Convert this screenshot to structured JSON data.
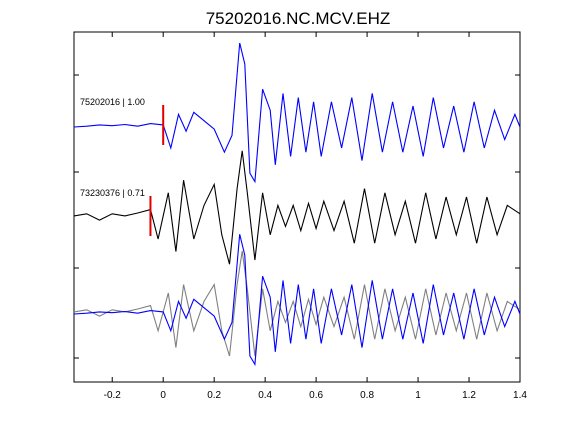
{
  "chart_data": {
    "type": "line",
    "title": "75202016.NC.MCV.EHZ",
    "xlabel": "",
    "ylabel": "",
    "xlim": [
      -0.35,
      1.4
    ],
    "x_ticks": [
      -0.2,
      0,
      0.2,
      0.4,
      0.6,
      0.8,
      1,
      1.2,
      1.4
    ],
    "x_tick_labels": [
      "-0.2",
      "0",
      "0.2",
      "0.4",
      "0.6",
      "0.8",
      "1",
      "1.2",
      "1.4"
    ],
    "grid": false,
    "colors": {
      "reference": "#0000ff",
      "comparison": "#000000",
      "overlay_comparison": "#808080",
      "pick": "#e00000",
      "axes": "#000000"
    },
    "panels": [
      {
        "label": "75202016 | 1.00",
        "pick_time": 0.0,
        "traces": [
          {
            "color_key": "reference",
            "values": [
              [
                -0.35,
                0
              ],
              [
                -0.3,
                0.02
              ],
              [
                -0.25,
                0.05
              ],
              [
                -0.2,
                0.03
              ],
              [
                -0.15,
                0.06
              ],
              [
                -0.1,
                0.02
              ],
              [
                -0.05,
                0.08
              ],
              [
                0,
                0.05
              ],
              [
                0.03,
                -0.5
              ],
              [
                0.06,
                0.3
              ],
              [
                0.09,
                -0.1
              ],
              [
                0.12,
                0.35
              ],
              [
                0.16,
                0.15
              ],
              [
                0.2,
                -0.05
              ],
              [
                0.24,
                -0.6
              ],
              [
                0.27,
                -0.2
              ],
              [
                0.3,
                2.0
              ],
              [
                0.32,
                1.5
              ],
              [
                0.34,
                -1.1
              ],
              [
                0.36,
                -1.3
              ],
              [
                0.39,
                0.9
              ],
              [
                0.42,
                0.4
              ],
              [
                0.44,
                -0.9
              ],
              [
                0.47,
                0.8
              ],
              [
                0.5,
                -0.7
              ],
              [
                0.53,
                0.7
              ],
              [
                0.56,
                -0.6
              ],
              [
                0.59,
                0.6
              ],
              [
                0.62,
                -0.7
              ],
              [
                0.66,
                0.6
              ],
              [
                0.7,
                -0.5
              ],
              [
                0.74,
                0.7
              ],
              [
                0.78,
                -0.8
              ],
              [
                0.82,
                0.8
              ],
              [
                0.86,
                -0.6
              ],
              [
                0.9,
                0.6
              ],
              [
                0.94,
                -0.6
              ],
              [
                0.98,
                0.5
              ],
              [
                1.02,
                -0.7
              ],
              [
                1.06,
                0.7
              ],
              [
                1.1,
                -0.5
              ],
              [
                1.14,
                0.5
              ],
              [
                1.18,
                -0.6
              ],
              [
                1.22,
                0.6
              ],
              [
                1.26,
                -0.5
              ],
              [
                1.3,
                0.4
              ],
              [
                1.34,
                -0.3
              ],
              [
                1.38,
                0.3
              ],
              [
                1.4,
                0
              ]
            ]
          }
        ]
      },
      {
        "label": "73230376 | 0.71",
        "pick_time": -0.05,
        "traces": [
          {
            "color_key": "comparison",
            "values": [
              [
                -0.35,
                0.05
              ],
              [
                -0.3,
                0.1
              ],
              [
                -0.25,
                -0.05
              ],
              [
                -0.2,
                0.1
              ],
              [
                -0.15,
                0.05
              ],
              [
                -0.1,
                0.12
              ],
              [
                -0.05,
                0.2
              ],
              [
                -0.02,
                -0.5
              ],
              [
                0.02,
                0.6
              ],
              [
                0.05,
                -0.8
              ],
              [
                0.08,
                0.9
              ],
              [
                0.12,
                -0.5
              ],
              [
                0.16,
                0.3
              ],
              [
                0.2,
                0.8
              ],
              [
                0.23,
                -0.4
              ],
              [
                0.26,
                -1.1
              ],
              [
                0.29,
                0.7
              ],
              [
                0.31,
                1.6
              ],
              [
                0.33,
                0.6
              ],
              [
                0.36,
                -1.0
              ],
              [
                0.39,
                0.6
              ],
              [
                0.42,
                -0.4
              ],
              [
                0.45,
                0.3
              ],
              [
                0.48,
                -0.2
              ],
              [
                0.51,
                0.3
              ],
              [
                0.54,
                -0.3
              ],
              [
                0.57,
                0.35
              ],
              [
                0.6,
                -0.25
              ],
              [
                0.63,
                0.4
              ],
              [
                0.67,
                -0.3
              ],
              [
                0.71,
                0.4
              ],
              [
                0.75,
                -0.6
              ],
              [
                0.79,
                0.7
              ],
              [
                0.83,
                -0.6
              ],
              [
                0.87,
                0.6
              ],
              [
                0.91,
                -0.4
              ],
              [
                0.95,
                0.4
              ],
              [
                0.99,
                -0.6
              ],
              [
                1.03,
                0.6
              ],
              [
                1.07,
                -0.5
              ],
              [
                1.11,
                0.5
              ],
              [
                1.15,
                -0.4
              ],
              [
                1.19,
                0.5
              ],
              [
                1.23,
                -0.6
              ],
              [
                1.27,
                0.5
              ],
              [
                1.31,
                -0.4
              ],
              [
                1.35,
                0.3
              ],
              [
                1.4,
                0.1
              ]
            ]
          }
        ]
      },
      {
        "label": "",
        "pick_time": null,
        "traces": [
          {
            "color_key": "overlay_comparison",
            "values": [
              [
                -0.35,
                0.05
              ],
              [
                -0.3,
                0.1
              ],
              [
                -0.25,
                -0.05
              ],
              [
                -0.2,
                0.1
              ],
              [
                -0.15,
                0.05
              ],
              [
                -0.1,
                0.12
              ],
              [
                -0.05,
                0.2
              ],
              [
                -0.02,
                -0.4
              ],
              [
                0.02,
                0.5
              ],
              [
                0.05,
                -0.8
              ],
              [
                0.08,
                0.7
              ],
              [
                0.12,
                -0.4
              ],
              [
                0.16,
                0.3
              ],
              [
                0.2,
                0.7
              ],
              [
                0.23,
                -0.4
              ],
              [
                0.26,
                -1.0
              ],
              [
                0.29,
                0.7
              ],
              [
                0.31,
                1.5
              ],
              [
                0.33,
                0.6
              ],
              [
                0.36,
                -1.0
              ],
              [
                0.39,
                0.6
              ],
              [
                0.42,
                -0.4
              ],
              [
                0.45,
                0.3
              ],
              [
                0.48,
                -0.2
              ],
              [
                0.51,
                0.3
              ],
              [
                0.54,
                -0.3
              ],
              [
                0.57,
                0.35
              ],
              [
                0.6,
                -0.25
              ],
              [
                0.63,
                0.4
              ],
              [
                0.67,
                -0.3
              ],
              [
                0.71,
                0.4
              ],
              [
                0.75,
                -0.6
              ],
              [
                0.79,
                0.7
              ],
              [
                0.83,
                -0.6
              ],
              [
                0.87,
                0.6
              ],
              [
                0.91,
                -0.4
              ],
              [
                0.95,
                0.4
              ],
              [
                0.99,
                -0.6
              ],
              [
                1.03,
                0.6
              ],
              [
                1.07,
                -0.5
              ],
              [
                1.11,
                0.5
              ],
              [
                1.15,
                -0.4
              ],
              [
                1.19,
                0.5
              ],
              [
                1.23,
                -0.6
              ],
              [
                1.27,
                0.5
              ],
              [
                1.31,
                -0.4
              ],
              [
                1.35,
                0.3
              ],
              [
                1.4,
                0.1
              ]
            ]
          },
          {
            "color_key": "reference",
            "values": [
              [
                -0.35,
                0
              ],
              [
                -0.3,
                0.02
              ],
              [
                -0.25,
                0.05
              ],
              [
                -0.2,
                0.03
              ],
              [
                -0.15,
                0.06
              ],
              [
                -0.1,
                0.02
              ],
              [
                -0.05,
                0.08
              ],
              [
                0,
                0.05
              ],
              [
                0.03,
                -0.4
              ],
              [
                0.06,
                0.3
              ],
              [
                0.09,
                -0.1
              ],
              [
                0.12,
                0.35
              ],
              [
                0.16,
                0.15
              ],
              [
                0.2,
                -0.05
              ],
              [
                0.24,
                -0.6
              ],
              [
                0.27,
                -0.2
              ],
              [
                0.3,
                1.9
              ],
              [
                0.32,
                1.4
              ],
              [
                0.34,
                -1.0
              ],
              [
                0.36,
                -1.2
              ],
              [
                0.39,
                0.9
              ],
              [
                0.42,
                0.4
              ],
              [
                0.44,
                -0.9
              ],
              [
                0.47,
                0.8
              ],
              [
                0.5,
                -0.7
              ],
              [
                0.53,
                0.7
              ],
              [
                0.56,
                -0.6
              ],
              [
                0.59,
                0.6
              ],
              [
                0.62,
                -0.7
              ],
              [
                0.66,
                0.6
              ],
              [
                0.7,
                -0.5
              ],
              [
                0.74,
                0.7
              ],
              [
                0.78,
                -0.8
              ],
              [
                0.82,
                0.8
              ],
              [
                0.86,
                -0.6
              ],
              [
                0.9,
                0.6
              ],
              [
                0.94,
                -0.6
              ],
              [
                0.98,
                0.5
              ],
              [
                1.02,
                -0.7
              ],
              [
                1.06,
                0.7
              ],
              [
                1.1,
                -0.5
              ],
              [
                1.14,
                0.5
              ],
              [
                1.18,
                -0.6
              ],
              [
                1.22,
                0.6
              ],
              [
                1.26,
                -0.5
              ],
              [
                1.3,
                0.4
              ],
              [
                1.34,
                -0.3
              ],
              [
                1.38,
                0.3
              ],
              [
                1.4,
                0
              ]
            ]
          }
        ]
      }
    ]
  }
}
